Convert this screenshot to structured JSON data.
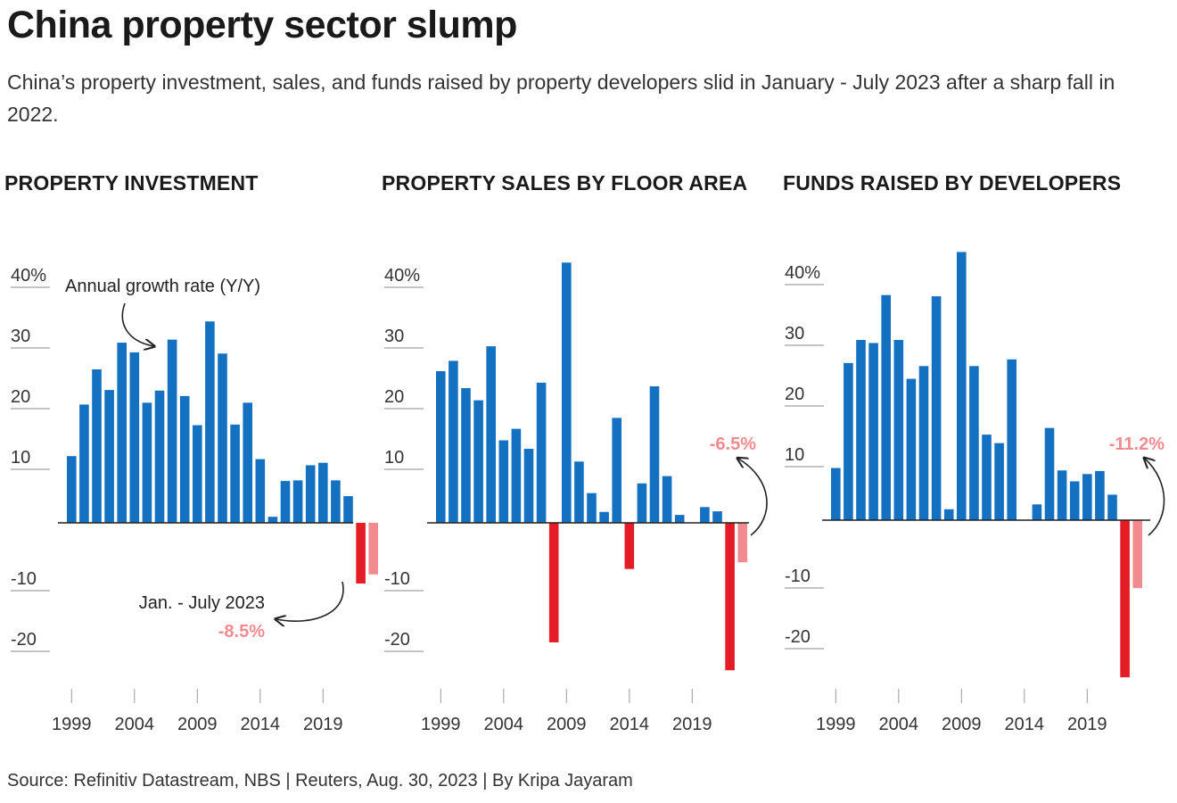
{
  "title": "China property sector slump",
  "subtitle": "China’s property investment, sales, and funds raised by property developers slid in January - July 2023 after a sharp fall in 2022.",
  "source": "Source: Refinitiv Datastream, NBS | Reuters, Aug. 30, 2023 | By Kripa Jayaram",
  "colors": {
    "positive": "#1470c0",
    "negative": "#e31c25",
    "partial": "#f28b8f",
    "axis": "#222222",
    "tick": "#999999"
  },
  "chart_data": [
    {
      "type": "bar",
      "title": "PROPERTY INVESTMENT",
      "x": [
        1999,
        2000,
        2001,
        2002,
        2003,
        2004,
        2005,
        2006,
        2007,
        2008,
        2009,
        2010,
        2011,
        2012,
        2013,
        2014,
        2015,
        2016,
        2017,
        2018,
        2019,
        2020,
        2021,
        2022,
        2023
      ],
      "values": [
        11.0,
        19.5,
        25.3,
        21.9,
        29.7,
        28.1,
        19.8,
        21.8,
        30.2,
        20.9,
        16.1,
        33.2,
        27.9,
        16.2,
        19.8,
        10.5,
        1.0,
        6.9,
        7.0,
        9.5,
        9.9,
        7.0,
        4.4,
        -10.0,
        -8.5
      ],
      "partial_last": true,
      "x_ticks": [
        1999,
        2004,
        2009,
        2014,
        2019
      ],
      "y_ticks": [
        "40%",
        "30",
        "20",
        "10",
        "-10",
        "-20"
      ],
      "ylim": [
        -27,
        44
      ],
      "annotations": {
        "series_label": "Annual growth rate (Y/Y)",
        "period_label": "Jan. - July 2023",
        "value_label": "-8.5%"
      }
    },
    {
      "type": "bar",
      "title": "PROPERTY SALES BY FLOOR AREA",
      "x": [
        1999,
        2000,
        2001,
        2002,
        2003,
        2004,
        2005,
        2006,
        2007,
        2008,
        2009,
        2010,
        2011,
        2012,
        2013,
        2014,
        2015,
        2016,
        2017,
        2018,
        2019,
        2020,
        2021,
        2022,
        2023
      ],
      "values": [
        25.0,
        26.7,
        22.2,
        20.2,
        29.1,
        13.6,
        15.5,
        12.2,
        23.1,
        -19.7,
        42.9,
        10.1,
        4.9,
        1.8,
        17.3,
        -7.6,
        6.5,
        22.5,
        7.7,
        1.3,
        0,
        2.6,
        1.9,
        -24.3,
        -6.5
      ],
      "partial_last": true,
      "x_ticks": [
        1999,
        2004,
        2009,
        2014,
        2019
      ],
      "y_ticks": [
        "40%",
        "30",
        "20",
        "10",
        "-10",
        "-20"
      ],
      "ylim": [
        -27,
        44
      ],
      "annotations": {
        "value_label": "-6.5%"
      }
    },
    {
      "type": "bar",
      "title": "FUNDS RAISED BY DEVELOPERS",
      "x": [
        1999,
        2000,
        2001,
        2002,
        2003,
        2004,
        2005,
        2006,
        2007,
        2008,
        2009,
        2010,
        2011,
        2012,
        2013,
        2014,
        2015,
        2016,
        2017,
        2018,
        2019,
        2020,
        2021,
        2022,
        2023
      ],
      "values": [
        8.6,
        25.9,
        29.7,
        29.2,
        37.1,
        29.7,
        23.3,
        25.4,
        36.9,
        1.8,
        44.2,
        25.4,
        14.1,
        12.7,
        26.5,
        0,
        2.6,
        15.2,
        8.2,
        6.4,
        7.6,
        8.1,
        4.2,
        -25.9,
        -11.2
      ],
      "partial_last": true,
      "x_ticks": [
        1999,
        2004,
        2009,
        2014,
        2019
      ],
      "y_ticks": [
        "40%",
        "30",
        "20",
        "10",
        "-10",
        "-20"
      ],
      "ylim": [
        -27,
        44
      ],
      "annotations": {
        "value_label": "-11.2%"
      }
    }
  ]
}
